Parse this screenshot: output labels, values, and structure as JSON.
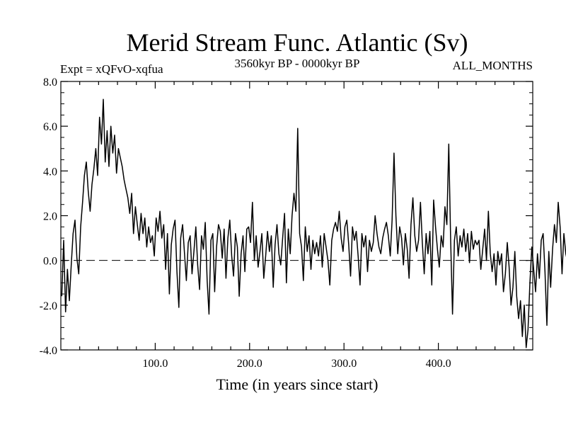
{
  "chart_data": {
    "type": "line",
    "title": "Merid Stream Func. Atlantic (Sv)",
    "subtitle_left": "Expt = xQFvO-xqfua",
    "subtitle_center": "3560kyr BP - 0000kyr BP",
    "subtitle_right": "ALL_MONTHS",
    "xlabel": "Time (in years since start)",
    "ylabel": "",
    "xlim": [
      0,
      500
    ],
    "ylim": [
      -4.0,
      8.0
    ],
    "x_ticks": [
      100,
      200,
      300,
      400
    ],
    "x_tick_labels": [
      "100.0",
      "200.0",
      "300.0",
      "400.0"
    ],
    "y_ticks": [
      -4,
      -2,
      0,
      2,
      4,
      6,
      8
    ],
    "y_tick_labels": [
      "-4.0",
      "-2.0",
      "0.0",
      "2.0",
      "4.0",
      "6.0",
      "8.0"
    ],
    "reference_line": {
      "y": 0,
      "style": "dashed"
    },
    "series": [
      {
        "name": "Merid Stream Func. Atlantic",
        "x_start": 1,
        "x_step": 2,
        "values": [
          -1.6,
          0.9,
          -2.3,
          -0.4,
          -1.8,
          -0.2,
          1.2,
          1.8,
          0.1,
          -0.6,
          1.5,
          2.6,
          3.8,
          4.4,
          3.1,
          2.2,
          3.4,
          4.1,
          5.0,
          3.8,
          6.4,
          5.2,
          7.2,
          4.4,
          5.8,
          4.2,
          6.0,
          4.8,
          5.6,
          3.9,
          5.0,
          4.6,
          4.2,
          3.6,
          3.2,
          2.8,
          2.1,
          3.0,
          1.2,
          2.4,
          1.6,
          0.9,
          2.1,
          1.2,
          1.9,
          0.6,
          1.5,
          0.8,
          1.1,
          0.2,
          1.9,
          1.3,
          2.2,
          1.0,
          1.6,
          -0.4,
          1.2,
          -1.5,
          0.7,
          1.4,
          1.8,
          -0.5,
          -2.1,
          1.0,
          1.6,
          0.3,
          -0.9,
          0.8,
          1.1,
          -0.6,
          0.4,
          1.5,
          -0.2,
          -1.3,
          1.1,
          0.5,
          1.7,
          -0.9,
          -2.4,
          0.9,
          1.2,
          -1.4,
          0.6,
          1.6,
          1.3,
          0.1,
          1.4,
          -0.8,
          1.0,
          1.8,
          0.2,
          -0.7,
          1.2,
          0.6,
          -1.6,
          0.3,
          1.1,
          -0.5,
          1.4,
          1.5,
          0.8,
          2.6,
          0.0,
          1.1,
          -0.3,
          0.4,
          1.2,
          -0.8,
          0.2,
          1.3,
          0.4,
          1.1,
          -1.2,
          0.7,
          1.6,
          0.3,
          -0.2,
          1.0,
          2.1,
          -1.0,
          1.4,
          0.3,
          2.0,
          3.0,
          2.2,
          5.9,
          1.2,
          0.6,
          -0.9,
          1.5,
          0.4,
          1.1,
          -0.4,
          0.9,
          0.3,
          0.8,
          0.2,
          1.1,
          -0.3,
          1.2,
          0.6,
          0.0,
          -1.1,
          0.9,
          1.4,
          1.7,
          1.3,
          2.2,
          1.0,
          0.4,
          1.5,
          1.8,
          0.7,
          -0.7,
          1.5,
          0.9,
          1.3,
          0.2,
          -1.1,
          1.2,
          0.6,
          1.1,
          -0.5,
          0.9,
          0.4,
          0.8,
          2.0,
          1.2,
          0.6,
          0.3,
          1.0,
          1.4,
          1.7,
          1.1,
          0.2,
          1.8,
          4.8,
          2.0,
          0.3,
          1.5,
          1.0,
          -0.2,
          1.2,
          0.5,
          -0.8,
          1.6,
          2.8,
          1.1,
          0.4,
          0.9,
          2.6,
          0.8,
          -0.6,
          1.2,
          0.3,
          1.3,
          -1.1,
          2.7,
          1.5,
          0.5,
          -0.3,
          1.1,
          0.6,
          2.4,
          1.6,
          5.2,
          1.0,
          -2.4,
          0.9,
          1.5,
          0.2,
          1.1,
          0.6,
          1.4,
          0.4,
          1.2,
          -0.1,
          1.3,
          0.5,
          0.9,
          0.7,
          0.9,
          -0.4,
          0.5,
          1.4,
          0.0,
          2.2,
          0.3,
          -0.5,
          0.3,
          -1.1,
          0.4,
          -0.2,
          0.3,
          -1.4,
          -0.6,
          0.8,
          -0.3,
          -2.0,
          -1.2,
          0.4,
          -1.6,
          -2.6,
          -1.8,
          -3.4,
          -2.0,
          -3.9,
          -3.1,
          -1.0,
          0.6,
          -0.4,
          -1.4,
          0.3,
          -0.8,
          0.9,
          1.2,
          -0.5,
          -2.9,
          0.4,
          -1.2,
          0.5,
          1.6,
          0.8,
          2.6,
          1.5,
          -0.6,
          1.2,
          0.3,
          -0.1,
          1.4,
          -0.4,
          0.6,
          -0.9,
          0.7,
          1.0,
          -0.3,
          -0.8,
          1.1,
          0.3,
          -0.5,
          0.8,
          2.6,
          1.4,
          -0.5,
          -2.1,
          0.7,
          -0.6,
          1.2,
          0.1,
          -0.7,
          1.3,
          0.6,
          -1.1,
          0.5,
          1.1,
          2.4,
          0.8,
          1.2,
          -0.9,
          1.4,
          0.8,
          -0.4,
          -2.6,
          0.6,
          -0.9,
          1.3,
          2.9,
          1.1,
          0.3,
          1.6,
          0.7,
          2.3,
          1.4,
          0.6,
          0.4,
          1.9,
          0.4,
          -0.6,
          0.2,
          1.0,
          0.6,
          2.4,
          -0.2,
          0.8,
          1.2,
          1.7,
          0.9,
          -0.3,
          0.2,
          2.1,
          0.5,
          0.1,
          1.1,
          -0.4,
          -2.7,
          -1.1,
          0.9,
          -0.1,
          -1.5,
          0.6,
          1.4,
          0.7,
          2.5,
          3.4,
          2.2,
          -0.6,
          0.7,
          -3.1,
          0.3,
          -1.9,
          -3.0,
          0.0,
          0.5,
          0.1,
          -1.1,
          0.6,
          -0.7,
          -1.5,
          1.0,
          2.4,
          0.8,
          -0.5,
          1.6,
          -0.8,
          -1.0,
          0.4,
          -0.6,
          1.3,
          0.7,
          -0.9,
          -1.3,
          -0.2,
          -1.3,
          -0.9,
          -2.5,
          1.6,
          1.2
        ]
      }
    ]
  }
}
